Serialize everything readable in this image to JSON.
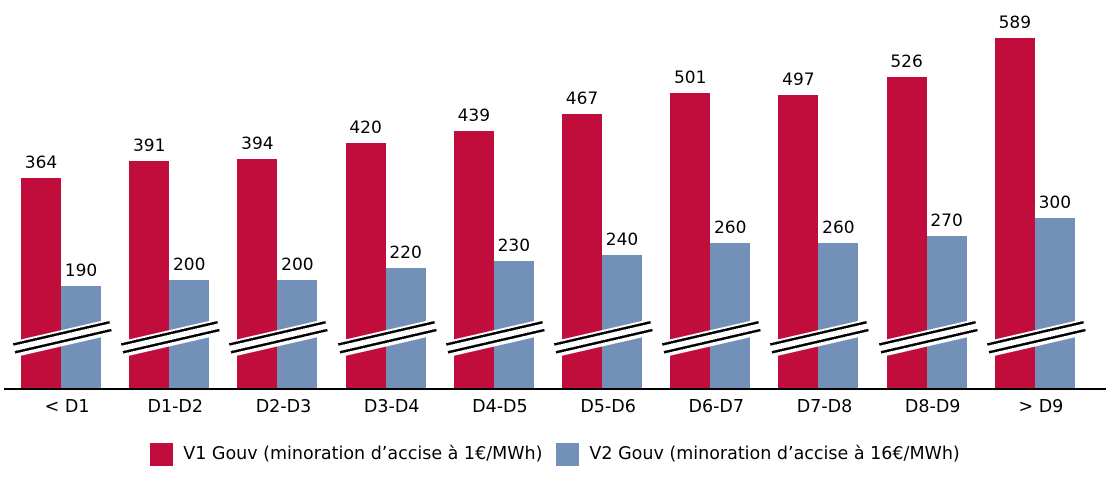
{
  "chart_data": {
    "type": "bar",
    "title": "",
    "xlabel": "",
    "ylabel": "",
    "grid": false,
    "legend_position": "bottom",
    "axis_break": true,
    "categories": [
      "< D1",
      "D1-D2",
      "D2-D3",
      "D3-D4",
      "D4-D5",
      "D5-D6",
      "D6-D7",
      "D7-D8",
      "D8-D9",
      "> D9"
    ],
    "series": [
      {
        "name": "V1 Gouv (minoration d’accise à 1€/MWh)",
        "color": "#C00D3C",
        "values": [
          364,
          391,
          394,
          420,
          439,
          467,
          501,
          497,
          526,
          589
        ]
      },
      {
        "name": "V2 Gouv (minoration d’accise à 16€/MWh)",
        "color": "#7290B8",
        "values": [
          190,
          200,
          200,
          220,
          230,
          240,
          260,
          260,
          270,
          300
        ]
      }
    ]
  }
}
